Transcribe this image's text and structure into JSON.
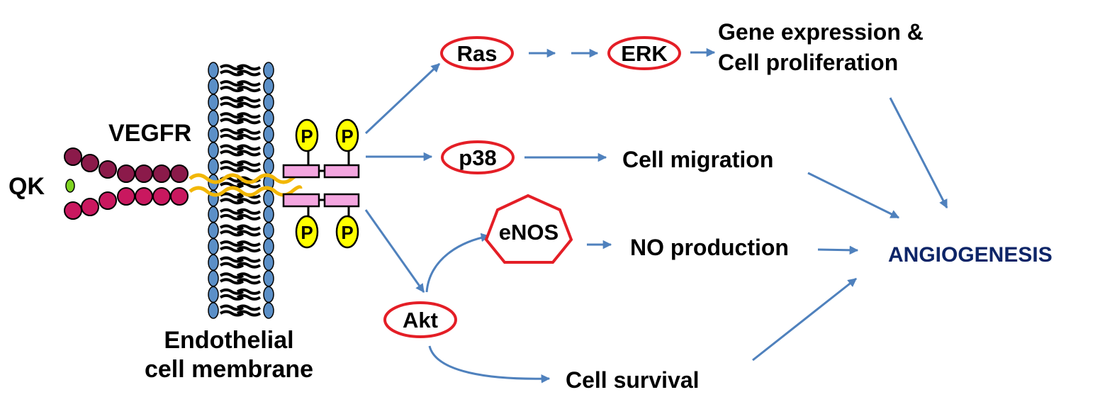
{
  "labels": {
    "qk": "QK",
    "vegfr": "VEGFR",
    "membrane_line1": "Endothelial",
    "membrane_line2": "cell membrane",
    "outcome": "ANGIOGENESIS"
  },
  "phospho_label": "P",
  "nodes": {
    "ras": "Ras",
    "erk": "ERK",
    "p38": "p38",
    "enos": "eNOS",
    "akt": "Akt"
  },
  "effects": {
    "gene_line1": "Gene expression &",
    "gene_line2": "Cell proliferation",
    "migration": "Cell migration",
    "no_production": "NO production",
    "survival": "Cell survival"
  },
  "colors": {
    "arrow": "#4f81bd",
    "node_outline": "#e41e26",
    "outcome_text": "#0d2567",
    "lipid_head": "#5b8fc7",
    "receptor_dark": "#8b1a4a",
    "receptor_light": "#c9185f",
    "ligand": "#7ed321",
    "linker": "#f2b705",
    "kinase_box": "#f4a6e0",
    "phospho": "#ffff00"
  }
}
